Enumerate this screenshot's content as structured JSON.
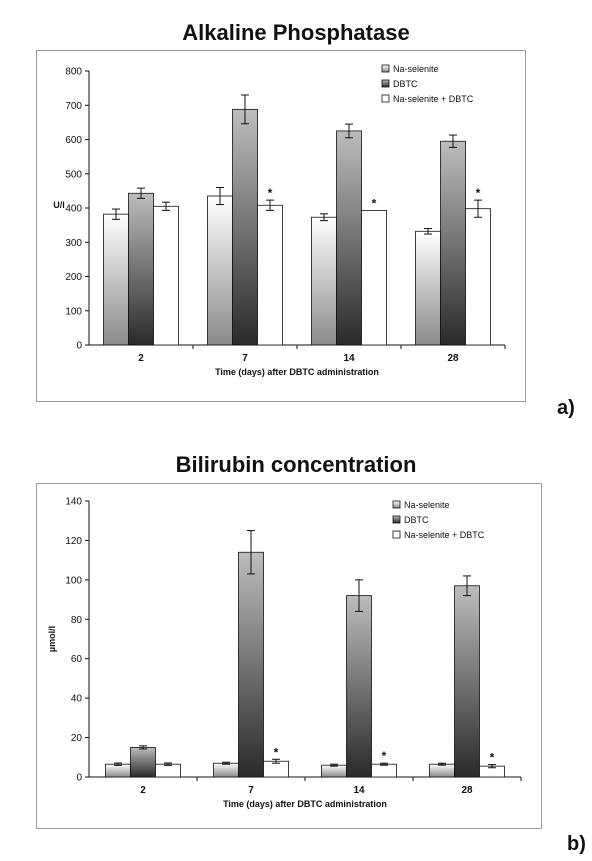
{
  "chart_data": [
    {
      "type": "bar",
      "title": "Alkaline Phosphatase",
      "panel_label": "a)",
      "xlabel": "Time (days) after DBTC administration",
      "ylabel": "U/l",
      "ylim": [
        0,
        800
      ],
      "yticks": [
        0,
        100,
        200,
        300,
        400,
        500,
        600,
        700,
        800
      ],
      "categories": [
        "2",
        "7",
        "14",
        "28"
      ],
      "legend_position": "top-right",
      "series": [
        {
          "name": "Na-selenite",
          "values": [
            382,
            435,
            373,
            332
          ],
          "errors": [
            15,
            25,
            10,
            8
          ],
          "stars": [
            false,
            false,
            false,
            false
          ]
        },
        {
          "name": "DBTC",
          "values": [
            443,
            688,
            625,
            595
          ],
          "errors": [
            15,
            42,
            20,
            18
          ],
          "stars": [
            false,
            false,
            false,
            false
          ]
        },
        {
          "name": "Na-selenite + DBTC",
          "values": [
            405,
            408,
            393,
            398
          ],
          "errors": [
            12,
            15,
            0,
            25
          ],
          "stars": [
            false,
            true,
            true,
            true
          ]
        }
      ],
      "star_symbol": "*"
    },
    {
      "type": "bar",
      "title": "Bilirubin concentration",
      "panel_label": "b)",
      "xlabel": "Time (days) after DBTC administration",
      "ylabel": "µmol/l",
      "ylim": [
        0,
        140
      ],
      "yticks": [
        0,
        20,
        40,
        60,
        80,
        100,
        120,
        140
      ],
      "categories": [
        "2",
        "7",
        "14",
        "28"
      ],
      "legend_position": "top-right",
      "series": [
        {
          "name": "Na-selenite",
          "values": [
            6.5,
            7,
            6,
            6.5
          ],
          "errors": [
            0.6,
            0.5,
            0.5,
            0.5
          ],
          "stars": [
            false,
            false,
            false,
            false
          ]
        },
        {
          "name": "DBTC",
          "values": [
            15,
            114,
            92,
            97
          ],
          "errors": [
            0.8,
            11,
            8,
            5
          ],
          "stars": [
            false,
            false,
            false,
            false
          ]
        },
        {
          "name": "Na-selenite + DBTC",
          "values": [
            6.5,
            8,
            6.5,
            5.5
          ],
          "errors": [
            0.6,
            1,
            0.5,
            0.8
          ],
          "stars": [
            false,
            true,
            true,
            true
          ]
        }
      ],
      "star_symbol": "*"
    }
  ]
}
